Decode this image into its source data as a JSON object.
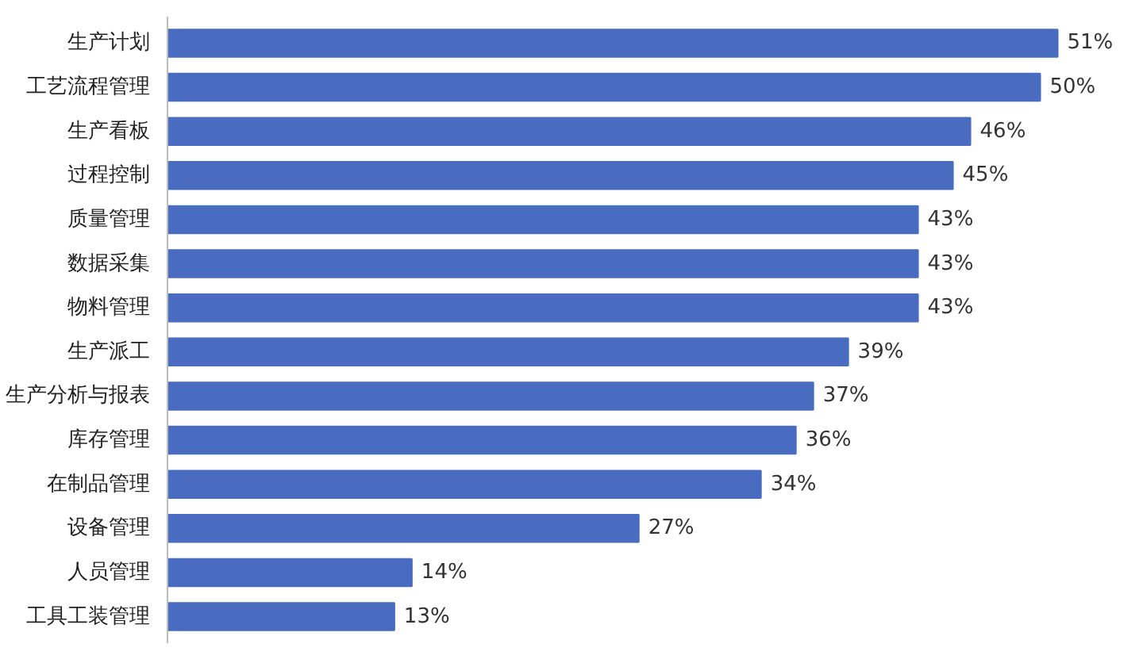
{
  "chart_data": {
    "type": "bar",
    "orientation": "horizontal",
    "categories": [
      "生产计划",
      "工艺流程管理",
      "生产看板",
      "过程控制",
      "质量管理",
      "数据采集",
      "物料管理",
      "生产派工",
      "生产分析与报表",
      "库存管理",
      "在制品管理",
      "设备管理",
      "人员管理",
      "工具工装管理"
    ],
    "values": [
      51,
      50,
      46,
      45,
      43,
      43,
      43,
      39,
      37,
      36,
      34,
      27,
      14,
      13
    ],
    "value_labels": [
      "51%",
      "50%",
      "46%",
      "45%",
      "43%",
      "43%",
      "43%",
      "39%",
      "37%",
      "36%",
      "34%",
      "27%",
      "14%",
      "13%"
    ],
    "color": "#4a6cc0",
    "tick_labels": "y",
    "grid": false
  }
}
